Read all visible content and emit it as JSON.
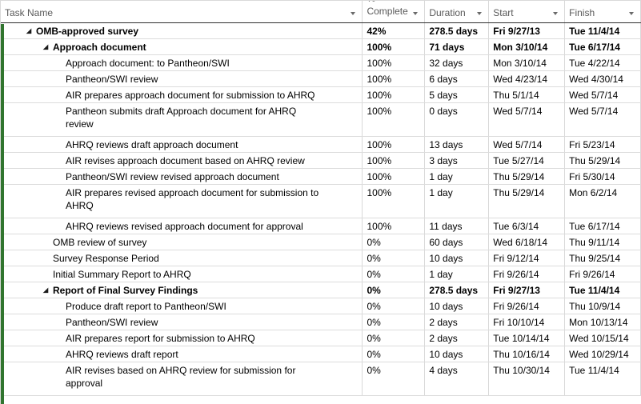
{
  "window": {
    "accent_green": "#31752F",
    "expand_icon_glyph": "◢"
  },
  "header": {
    "columns": [
      {
        "id": "name",
        "label": "Task Name",
        "label_top": ""
      },
      {
        "id": "complete",
        "label": "Complete",
        "label_top": "%"
      },
      {
        "id": "duration",
        "label": "Duration",
        "label_top": ""
      },
      {
        "id": "start",
        "label": "Start",
        "label_top": ""
      },
      {
        "id": "finish",
        "label": "Finish",
        "label_top": ""
      }
    ]
  },
  "tasks": [
    {
      "name": "OMB-approved survey",
      "level": 1,
      "summary": true,
      "bold": true,
      "complete": "42%",
      "duration": "278.5 days",
      "start": "Fri 9/27/13",
      "finish": "Tue 11/4/14"
    },
    {
      "name": "Approach document",
      "level": 2,
      "summary": true,
      "bold": true,
      "complete": "100%",
      "duration": "71 days",
      "start": "Mon 3/10/14",
      "finish": "Tue 6/17/14"
    },
    {
      "name": "Approach document: to Pantheon/SWI",
      "level": 3,
      "summary": false,
      "bold": false,
      "complete": "100%",
      "duration": "32 days",
      "start": "Mon 3/10/14",
      "finish": "Tue 4/22/14"
    },
    {
      "name": "Pantheon/SWI review",
      "level": 3,
      "summary": false,
      "bold": false,
      "complete": "100%",
      "duration": "6 days",
      "start": "Wed 4/23/14",
      "finish": "Wed 4/30/14"
    },
    {
      "name": "AIR prepares approach document for submission to AHRQ",
      "level": 3,
      "summary": false,
      "bold": false,
      "complete": "100%",
      "duration": "5 days",
      "start": "Thu 5/1/14",
      "finish": "Wed 5/7/14"
    },
    {
      "name": "Pantheon submits draft Approach document for AHRQ\nreview",
      "level": 3,
      "summary": false,
      "bold": false,
      "complete": "100%",
      "duration": "0 days",
      "start": "Wed 5/7/14",
      "finish": "Wed 5/7/14"
    },
    {
      "name": "AHRQ reviews draft approach document",
      "level": 3,
      "summary": false,
      "bold": false,
      "complete": "100%",
      "duration": "13 days",
      "start": "Wed 5/7/14",
      "finish": "Fri 5/23/14"
    },
    {
      "name": "AIR revises approach document based on AHRQ review",
      "level": 3,
      "summary": false,
      "bold": false,
      "complete": "100%",
      "duration": "3 days",
      "start": "Tue 5/27/14",
      "finish": "Thu 5/29/14"
    },
    {
      "name": "Pantheon/SWI review revised approach document",
      "level": 3,
      "summary": false,
      "bold": false,
      "complete": "100%",
      "duration": "1 day",
      "start": "Thu 5/29/14",
      "finish": "Fri 5/30/14"
    },
    {
      "name": "AIR prepares revised approach document for submission to\nAHRQ",
      "level": 3,
      "summary": false,
      "bold": false,
      "complete": "100%",
      "duration": "1 day",
      "start": "Thu 5/29/14",
      "finish": "Mon 6/2/14"
    },
    {
      "name": "AHRQ reviews revised approach document for approval",
      "level": 3,
      "summary": false,
      "bold": false,
      "complete": "100%",
      "duration": "11 days",
      "start": "Tue 6/3/14",
      "finish": "Tue 6/17/14"
    },
    {
      "name": "OMB review of survey",
      "level": 2,
      "summary": false,
      "bold": false,
      "complete": "0%",
      "duration": "60 days",
      "start": "Wed 6/18/14",
      "finish": "Thu 9/11/14"
    },
    {
      "name": "Survey Response Period",
      "level": 2,
      "summary": false,
      "bold": false,
      "complete": "0%",
      "duration": "10 days",
      "start": "Fri 9/12/14",
      "finish": "Thu 9/25/14"
    },
    {
      "name": "Initial Summary Report to AHRQ",
      "level": 2,
      "summary": false,
      "bold": false,
      "complete": "0%",
      "duration": "1 day",
      "start": "Fri 9/26/14",
      "finish": "Fri 9/26/14"
    },
    {
      "name": "Report of Final Survey Findings",
      "level": 2,
      "summary": true,
      "bold": true,
      "complete": "0%",
      "duration": "278.5 days",
      "start": "Fri 9/27/13",
      "finish": "Tue 11/4/14"
    },
    {
      "name": "Produce draft report to Pantheon/SWI",
      "level": 3,
      "summary": false,
      "bold": false,
      "complete": "0%",
      "duration": "10 days",
      "start": "Fri 9/26/14",
      "finish": "Thu 10/9/14"
    },
    {
      "name": "Pantheon/SWI review",
      "level": 3,
      "summary": false,
      "bold": false,
      "complete": "0%",
      "duration": "2 days",
      "start": "Fri 10/10/14",
      "finish": "Mon 10/13/14"
    },
    {
      "name": "AIR prepares report for submission to AHRQ",
      "level": 3,
      "summary": false,
      "bold": false,
      "complete": "0%",
      "duration": "2 days",
      "start": "Tue 10/14/14",
      "finish": "Wed 10/15/14"
    },
    {
      "name": "AHRQ reviews draft report",
      "level": 3,
      "summary": false,
      "bold": false,
      "complete": "0%",
      "duration": "10 days",
      "start": "Thu 10/16/14",
      "finish": "Wed 10/29/14"
    },
    {
      "name": "AIR revises based on AHRQ review for submission for\napproval",
      "level": 3,
      "summary": false,
      "bold": false,
      "complete": "0%",
      "duration": "4 days",
      "start": "Thu 10/30/14",
      "finish": "Tue 11/4/14"
    }
  ]
}
